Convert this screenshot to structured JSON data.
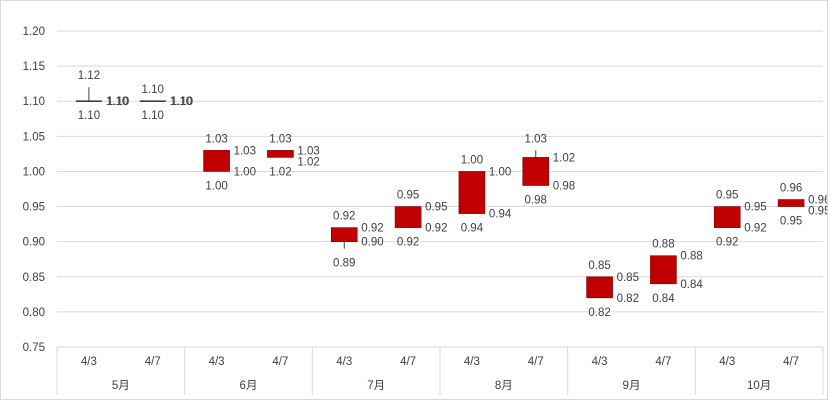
{
  "chart_data": {
    "type": "candlestick",
    "title": "",
    "xlabel": "",
    "ylabel": "",
    "ylim": [
      0.75,
      1.2
    ],
    "ytick_step": 0.05,
    "grid": true,
    "groups": [
      {
        "label": "5月",
        "items": [
          {
            "label": "4/3",
            "open": 1.1,
            "close": 1.1,
            "high": 1.12,
            "low": 1.1
          },
          {
            "label": "4/7",
            "open": 1.1,
            "close": 1.1,
            "high": 1.1,
            "low": 1.1
          }
        ]
      },
      {
        "label": "6月",
        "items": [
          {
            "label": "4/3",
            "open": 1.0,
            "close": 1.03,
            "high": 1.03,
            "low": 1.0
          },
          {
            "label": "4/7",
            "open": 1.02,
            "close": 1.03,
            "high": 1.03,
            "low": 1.02
          }
        ]
      },
      {
        "label": "7月",
        "items": [
          {
            "label": "4/3",
            "open": 0.9,
            "close": 0.92,
            "high": 0.92,
            "low": 0.89
          },
          {
            "label": "4/7",
            "open": 0.92,
            "close": 0.95,
            "high": 0.95,
            "low": 0.92
          }
        ]
      },
      {
        "label": "8月",
        "items": [
          {
            "label": "4/3",
            "open": 0.94,
            "close": 1.0,
            "high": 1.0,
            "low": 0.94
          },
          {
            "label": "4/7",
            "open": 0.98,
            "close": 1.02,
            "high": 1.03,
            "low": 0.98
          }
        ]
      },
      {
        "label": "9月",
        "items": [
          {
            "label": "4/3",
            "open": 0.82,
            "close": 0.85,
            "high": 0.85,
            "low": 0.82
          },
          {
            "label": "4/7",
            "open": 0.84,
            "close": 0.88,
            "high": 0.88,
            "low": 0.84
          }
        ]
      },
      {
        "label": "10月",
        "items": [
          {
            "label": "4/3",
            "open": 0.92,
            "close": 0.95,
            "high": 0.95,
            "low": 0.92
          },
          {
            "label": "4/7",
            "open": 0.95,
            "close": 0.96,
            "high": 0.96,
            "low": 0.95
          }
        ]
      }
    ],
    "colors": {
      "candle_fill": "#c00000",
      "candle_stroke": "#7f0000",
      "wick": "#404040",
      "grid": "#d9d9d9",
      "axis_text": "#595959",
      "label_text": "#404040"
    }
  }
}
